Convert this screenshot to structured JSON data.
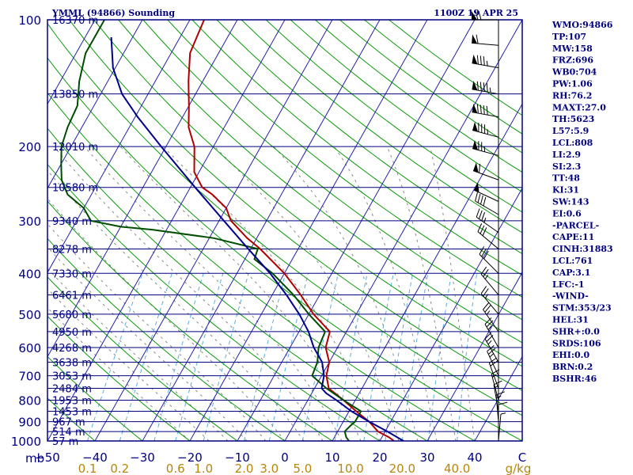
{
  "chart_data": {
    "type": "line",
    "title": "YMML (94866) Sounding",
    "time": "1100Z 19 APR 25",
    "xlabel_unit": "mb",
    "mixing_ratio_unit": "g/kg",
    "pressure_ticks": [
      100,
      200,
      300,
      400,
      500,
      600,
      700,
      800,
      900,
      1000
    ],
    "pressure_range": [
      100,
      1000
    ],
    "temperature_range": [
      -50,
      50
    ],
    "temperature_ticks": [
      {
        "label": "−50",
        "value": -50
      },
      {
        "label": "−40",
        "value": -40
      },
      {
        "label": "−30",
        "value": -30
      },
      {
        "label": "−20",
        "value": -20
      },
      {
        "label": "−10",
        "value": -10
      },
      {
        "label": "0",
        "value": 0
      },
      {
        "label": "10",
        "value": 10
      },
      {
        "label": "20",
        "value": 20
      },
      {
        "label": "30",
        "value": 30
      },
      {
        "label": "40",
        "value": 40
      },
      {
        "label": "C",
        "value": 50
      }
    ],
    "mixing_ratio_ticks": [
      "0.1",
      "0.2",
      "0.6",
      "1.0",
      "2.0",
      "3.0",
      "5.0",
      "10.0",
      "20.0",
      "40.0"
    ],
    "height_labels": [
      {
        "p": 100,
        "label": "16370 m"
      },
      {
        "p": 150,
        "label": "13850 m"
      },
      {
        "p": 200,
        "label": "12010 m"
      },
      {
        "p": 250,
        "label": "10580 m"
      },
      {
        "p": 300,
        "label": "9340 m"
      },
      {
        "p": 350,
        "label": "8278 m"
      },
      {
        "p": 400,
        "label": "7330 m"
      },
      {
        "p": 450,
        "label": "6461 m"
      },
      {
        "p": 500,
        "label": "5680 m"
      },
      {
        "p": 550,
        "label": "4950 m"
      },
      {
        "p": 600,
        "label": "4268 m"
      },
      {
        "p": 650,
        "label": "3638 m"
      },
      {
        "p": 700,
        "label": "3053 m"
      },
      {
        "p": 750,
        "label": "2484 m"
      },
      {
        "p": 800,
        "label": "1953 m"
      },
      {
        "p": 850,
        "label": "1453 m"
      },
      {
        "p": 900,
        "label": "967 m"
      },
      {
        "p": 950,
        "label": "514 m"
      },
      {
        "p": 1000,
        "label": "57 m"
      }
    ],
    "series": [
      {
        "color": "#b00000",
        "points": [
          [
            1000,
            23.0
          ],
          [
            980,
            21.5
          ],
          [
            950,
            18.5
          ],
          [
            900,
            15.5
          ],
          [
            850,
            11.5
          ],
          [
            800,
            7.5
          ],
          [
            750,
            3.0
          ],
          [
            700,
            1.0
          ],
          [
            650,
            0.0
          ],
          [
            600,
            -2.5
          ],
          [
            550,
            -3.5
          ],
          [
            500,
            -9.0
          ],
          [
            450,
            -14.0
          ],
          [
            400,
            -20.0
          ],
          [
            350,
            -28.0
          ],
          [
            330,
            -32.0
          ],
          [
            300,
            -37.5
          ],
          [
            280,
            -40.0
          ],
          [
            260,
            -44.5
          ],
          [
            250,
            -47.5
          ],
          [
            230,
            -51.0
          ],
          [
            200,
            -54.0
          ],
          [
            180,
            -57.5
          ],
          [
            160,
            -60.0
          ],
          [
            140,
            -63.0
          ],
          [
            120,
            -66.0
          ],
          [
            110,
            -66.5
          ],
          [
            100,
            -67.0
          ]
        ]
      },
      {
        "color": "#004d00",
        "points": [
          [
            1000,
            13.5
          ],
          [
            980,
            12.5
          ],
          [
            950,
            11.5
          ],
          [
            920,
            12.0
          ],
          [
            900,
            12.5
          ],
          [
            850,
            12.5
          ],
          [
            800,
            7.5
          ],
          [
            750,
            2.5
          ],
          [
            700,
            -2.0
          ],
          [
            650,
            -2.5
          ],
          [
            600,
            -4.0
          ],
          [
            550,
            -4.5
          ],
          [
            500,
            -10.0
          ],
          [
            450,
            -15.5
          ],
          [
            400,
            -22.5
          ],
          [
            370,
            -28.0
          ],
          [
            350,
            -28.5
          ],
          [
            330,
            -39.0
          ],
          [
            315,
            -53.0
          ],
          [
            310,
            -60.0
          ],
          [
            300,
            -67.0
          ],
          [
            280,
            -70.0
          ],
          [
            260,
            -75.0
          ],
          [
            240,
            -78.0
          ],
          [
            220,
            -80.0
          ],
          [
            200,
            -82.0
          ],
          [
            180,
            -83.0
          ],
          [
            160,
            -83.5
          ],
          [
            140,
            -86.0
          ],
          [
            120,
            -88.0
          ],
          [
            110,
            -88.0
          ],
          [
            100,
            -88.0
          ]
        ]
      },
      {
        "color": "#00008b",
        "points": [
          [
            1000,
            25.0
          ],
          [
            950,
            20.5
          ],
          [
            900,
            15.5
          ],
          [
            850,
            10.5
          ],
          [
            800,
            6.0
          ],
          [
            770,
            3.0
          ],
          [
            750,
            1.5
          ],
          [
            700,
            0.5
          ],
          [
            650,
            -1.5
          ],
          [
            600,
            -5.0
          ],
          [
            550,
            -8.0
          ],
          [
            500,
            -12.0
          ],
          [
            450,
            -17.0
          ],
          [
            400,
            -23.0
          ],
          [
            350,
            -30.5
          ],
          [
            300,
            -39.0
          ],
          [
            250,
            -49.0
          ],
          [
            200,
            -61.0
          ],
          [
            170,
            -69.5
          ],
          [
            150,
            -75.5
          ],
          [
            130,
            -80.5
          ],
          [
            110,
            -84.5
          ]
        ]
      }
    ],
    "wind_barbs": [
      {
        "p": 100,
        "dir": 270,
        "kt": 70
      },
      {
        "p": 115,
        "dir": 275,
        "kt": 60
      },
      {
        "p": 130,
        "dir": 280,
        "kt": 85
      },
      {
        "p": 150,
        "dir": 280,
        "kt": 95
      },
      {
        "p": 170,
        "dir": 280,
        "kt": 90
      },
      {
        "p": 190,
        "dir": 285,
        "kt": 85
      },
      {
        "p": 210,
        "dir": 285,
        "kt": 75
      },
      {
        "p": 240,
        "dir": 290,
        "kt": 60
      },
      {
        "p": 270,
        "dir": 295,
        "kt": 50
      },
      {
        "p": 290,
        "dir": 300,
        "kt": 40
      },
      {
        "p": 320,
        "dir": 305,
        "kt": 35
      },
      {
        "p": 350,
        "dir": 310,
        "kt": 30
      },
      {
        "p": 400,
        "dir": 315,
        "kt": 30
      },
      {
        "p": 450,
        "dir": 320,
        "kt": 25
      },
      {
        "p": 500,
        "dir": 320,
        "kt": 25
      },
      {
        "p": 550,
        "dir": 325,
        "kt": 25
      },
      {
        "p": 600,
        "dir": 330,
        "kt": 25
      },
      {
        "p": 650,
        "dir": 330,
        "kt": 25
      },
      {
        "p": 700,
        "dir": 335,
        "kt": 25
      },
      {
        "p": 750,
        "dir": 340,
        "kt": 20
      },
      {
        "p": 800,
        "dir": 345,
        "kt": 15
      },
      {
        "p": 850,
        "dir": 350,
        "kt": 15
      },
      {
        "p": 900,
        "dir": 355,
        "kt": 15
      },
      {
        "p": 950,
        "dir": 0,
        "kt": 10
      },
      {
        "p": 1000,
        "dir": 5,
        "kt": 5
      }
    ],
    "indices": [
      "WMO:94866",
      "TP:107",
      "MW:158",
      "FRZ:696",
      "WB0:704",
      "PW:1.06",
      "RH:76.2",
      "MAXT:27.0",
      "TH:5623",
      "L57:5.9",
      "LCL:808",
      "LI:2.9",
      "SI:2.3",
      "TT:48",
      "KI:31",
      "SW:143",
      "EI:0.6",
      "-PARCEL-",
      "CAPE:11",
      "CINH:31883",
      "LCL:761",
      "CAP:3.1",
      "LFC:-1",
      "-WIND-",
      "STM:353/23",
      "HEL:31",
      "SHR+:0.0",
      "SRDS:106",
      "EHI:0.0",
      "BRN:0.2",
      "BSHR:46"
    ],
    "colors": {
      "isobar": "#000080",
      "isotherm": "#2222aa",
      "dry_adiabat": "#0a9a0a",
      "moist_adiabat": "#888888",
      "mixing_ratio": "#5aaee0",
      "frame": "#000080"
    }
  }
}
